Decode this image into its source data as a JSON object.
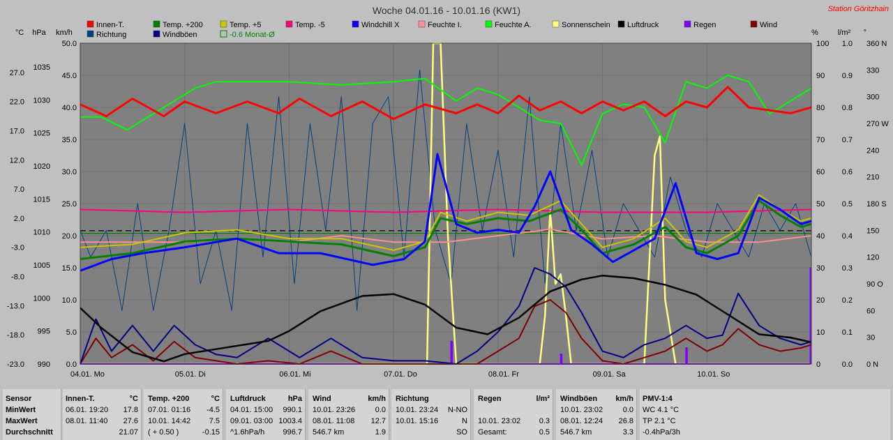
{
  "title": "Woche 04.01.16 - 10.01.16 (KW1)",
  "station": "Station Göritzhain",
  "axes": {
    "left_units": [
      "°C",
      "hPa",
      "km/h"
    ],
    "right_units": [
      "%",
      "l/m²",
      "°"
    ],
    "temp_ticks": [
      "27.0",
      "22.0",
      "17.0",
      "12.0",
      "7.0",
      "2.0",
      "-3.0",
      "-8.0",
      "-13.0",
      "-18.0",
      "-23.0"
    ],
    "hpa_ticks": [
      "1035",
      "1030",
      "1025",
      "1020",
      "1015",
      "1010",
      "1005",
      "1000",
      "995",
      "990"
    ],
    "kmh_ticks": [
      "50.0",
      "45.0",
      "40.0",
      "35.0",
      "30.0",
      "25.0",
      "20.0",
      "15.0",
      "10.0",
      "5.0",
      "0.0"
    ],
    "pct_ticks": [
      "100",
      "90",
      "80",
      "70",
      "60",
      "50",
      "40",
      "30",
      "20",
      "10",
      "0"
    ],
    "rain_ticks": [
      "1.0",
      "0.9",
      "0.8",
      "0.7",
      "0.6",
      "0.5",
      "0.4",
      "0.3",
      "0.2",
      "0.1",
      "0.0"
    ],
    "deg_ticks": [
      "360 N",
      "330",
      "300",
      "270 W",
      "240",
      "210",
      "180 S",
      "150",
      "120",
      "90 O",
      "60",
      "30",
      "0 N"
    ],
    "day_labels": [
      "04.01. Mo",
      "05.01. Di",
      "06.01. Mi",
      "07.01. Do",
      "08.01. Fr",
      "09.01. Sa",
      "10.01. So"
    ]
  },
  "legend": [
    {
      "label": "Innen-T.",
      "color": "#ff0000"
    },
    {
      "label": "Temp. +200",
      "color": "#008000"
    },
    {
      "label": "Temp. +5",
      "color": "#c8c800"
    },
    {
      "label": "Temp. -5",
      "color": "#ff0080"
    },
    {
      "label": "Windchill X",
      "color": "#0000ff"
    },
    {
      "label": "Feuchte I.",
      "color": "#ff9090"
    },
    {
      "label": "Feuchte A.",
      "color": "#00ff00"
    },
    {
      "label": "Sonnenschein",
      "color": "#ffff80"
    },
    {
      "label": "Luftdruck",
      "color": "#000000"
    },
    {
      "label": "Regen",
      "color": "#8000ff"
    },
    {
      "label": "Wind",
      "color": "#800000"
    },
    {
      "label": "Richtung",
      "color": "#004080"
    },
    {
      "label": "Windböen",
      "color": "#000080"
    },
    {
      "label": "-0.6 Monat-Ø",
      "color": "#008000"
    }
  ],
  "chart_data": {
    "type": "line",
    "title": "Woche 04.01.16 - 10.01.16 (KW1)",
    "x_unit": "days from 04.01.16 00:00",
    "xlim": [
      0,
      7
    ],
    "ylim_temp": [
      -23,
      32
    ],
    "ylim_pressure": [
      990,
      1038.6
    ],
    "ylim_kmh": [
      0,
      50
    ],
    "ylim_percent": [
      0,
      100
    ],
    "ylim_rain": [
      0,
      1
    ],
    "ylim_dir_deg": [
      0,
      360
    ],
    "reference_lines": [
      {
        "name": "Temp mean",
        "y_temp": -0.15,
        "color": "#000000",
        "style": "dashed"
      },
      {
        "name": "-0.6 Monat-Ø",
        "y_temp": -0.6,
        "color": "#008000",
        "style": "solid"
      }
    ],
    "series": [
      {
        "name": "Innen-T.",
        "axis": "temp",
        "color": "#ff0000",
        "x": [
          0,
          0.25,
          0.5,
          0.8,
          1.0,
          1.3,
          1.6,
          1.9,
          2.1,
          2.4,
          2.7,
          3.0,
          3.3,
          3.6,
          3.8,
          4.0,
          4.2,
          4.4,
          4.6,
          4.8,
          5.0,
          5.2,
          5.4,
          5.6,
          5.8,
          6.0,
          6.2,
          6.4,
          6.6,
          6.8,
          7.0
        ],
        "y": [
          21.5,
          19.5,
          22.5,
          19.5,
          22.0,
          20.0,
          22.0,
          20.0,
          22.5,
          19.5,
          22.0,
          19.0,
          21.5,
          20.0,
          21.5,
          20.0,
          23.0,
          20.5,
          22.0,
          20.0,
          22.0,
          20.5,
          22.0,
          19.5,
          22.0,
          21.0,
          24.5,
          21.0,
          20.5,
          20.0,
          21.0
        ]
      },
      {
        "name": "Temp. +200",
        "axis": "temp",
        "color": "#008000",
        "x": [
          0,
          0.5,
          1.0,
          1.5,
          2.0,
          2.5,
          3.0,
          3.3,
          3.45,
          3.7,
          4.0,
          4.3,
          4.6,
          4.8,
          5.0,
          5.3,
          5.6,
          5.8,
          6.0,
          6.3,
          6.5,
          6.7,
          6.9,
          7.0
        ],
        "y": [
          -5.0,
          -4.0,
          -2.0,
          -1.5,
          -2.0,
          -2.5,
          -4.5,
          -3.0,
          2.0,
          1.0,
          2.0,
          1.5,
          3.5,
          0.0,
          -4.0,
          -2.5,
          0.5,
          -3.0,
          -4.0,
          -1.0,
          5.0,
          2.5,
          0.5,
          1.0
        ]
      },
      {
        "name": "Temp. +5",
        "axis": "temp",
        "color": "#c8c800",
        "x": [
          0,
          0.5,
          1.0,
          1.5,
          2.0,
          2.5,
          3.0,
          3.3,
          3.45,
          3.7,
          4.0,
          4.3,
          4.6,
          4.8,
          5.0,
          5.3,
          5.6,
          5.8,
          6.0,
          6.3,
          6.5,
          6.7,
          6.9,
          7.0
        ],
        "y": [
          -3.0,
          -2.5,
          -0.5,
          0.0,
          -1.5,
          -1.5,
          -3.5,
          -2.0,
          3.0,
          1.5,
          3.0,
          2.5,
          5.0,
          1.0,
          -3.0,
          -1.5,
          2.0,
          -2.0,
          -3.0,
          0.0,
          6.0,
          3.5,
          1.5,
          2.0
        ]
      },
      {
        "name": "Temp. -5",
        "axis": "temp",
        "color": "#ff0080",
        "x": [
          0,
          1.0,
          2.0,
          3.0,
          4.0,
          5.0,
          6.0,
          7.0
        ],
        "y": [
          3.5,
          3.0,
          3.5,
          3.0,
          3.5,
          3.0,
          3.0,
          3.5
        ]
      },
      {
        "name": "Windchill X",
        "axis": "temp",
        "color": "#0000ff",
        "x": [
          0,
          0.3,
          0.6,
          1.0,
          1.5,
          1.9,
          2.3,
          2.8,
          3.1,
          3.3,
          3.42,
          3.6,
          3.8,
          4.0,
          4.2,
          4.35,
          4.5,
          4.7,
          4.9,
          5.1,
          5.3,
          5.5,
          5.7,
          5.9,
          6.1,
          6.3,
          6.5,
          6.7,
          6.9,
          7.0
        ],
        "y": [
          -7.0,
          -5.0,
          -4.0,
          -3.0,
          -1.5,
          -4.0,
          -4.0,
          -6.0,
          -5.0,
          -2.0,
          13.0,
          1.0,
          -0.5,
          0.0,
          -0.5,
          4.0,
          10.0,
          0.0,
          -2.5,
          -5.5,
          -3.5,
          -1.5,
          8.0,
          -4.0,
          -5.0,
          -4.0,
          5.5,
          3.5,
          1.0,
          1.5
        ]
      },
      {
        "name": "Feuchte I.",
        "axis": "percent",
        "color": "#ff9090",
        "x": [
          0,
          0.5,
          1.0,
          1.5,
          2.0,
          2.5,
          3.0,
          3.5,
          4.0,
          4.5,
          5.0,
          5.5,
          6.0,
          6.5,
          7.0
        ],
        "y": [
          38,
          38,
          38,
          39,
          38,
          40,
          38,
          38,
          40,
          42,
          39,
          40,
          38,
          38,
          40
        ]
      },
      {
        "name": "Feuchte A.",
        "axis": "percent",
        "color": "#00ff00",
        "x": [
          0,
          0.2,
          0.45,
          0.7,
          0.9,
          1.1,
          1.3,
          1.6,
          2.0,
          2.5,
          3.0,
          3.3,
          3.6,
          3.8,
          4.0,
          4.2,
          4.4,
          4.6,
          4.8,
          5.0,
          5.2,
          5.4,
          5.6,
          5.8,
          6.0,
          6.2,
          6.4,
          6.6,
          6.8,
          7.0
        ],
        "y": [
          77,
          77,
          73,
          78,
          82,
          86,
          88,
          88,
          88,
          87,
          88,
          89,
          82,
          86,
          84,
          80,
          76,
          75,
          62,
          78,
          81,
          80,
          69,
          88,
          86,
          90,
          88,
          78,
          82,
          86
        ]
      },
      {
        "name": "Sonnenschein",
        "axis": "percent",
        "color": "#ffff80",
        "x": [
          0,
          3.32,
          3.38,
          3.45,
          3.52,
          3.6,
          4.0,
          4.4,
          4.45,
          4.5,
          4.55,
          4.6,
          4.65,
          4.7,
          5.0,
          5.4,
          5.5,
          5.55,
          5.6,
          5.7,
          7.0
        ],
        "y": [
          0,
          0,
          100,
          100,
          40,
          0,
          0,
          0,
          15,
          48,
          25,
          28,
          15,
          0,
          0,
          0,
          65,
          71,
          20,
          0,
          0
        ]
      },
      {
        "name": "Luftdruck",
        "axis": "pressure",
        "color": "#000000",
        "x": [
          0,
          0.2,
          0.5,
          0.8,
          1.0,
          1.4,
          1.8,
          2.0,
          2.3,
          2.7,
          3.0,
          3.3,
          3.6,
          3.9,
          4.2,
          4.5,
          4.8,
          5.0,
          5.3,
          5.6,
          5.9,
          6.2,
          6.5,
          6.8,
          7.0
        ],
        "y": [
          998.5,
          995.5,
          991.8,
          990.4,
          991.5,
          992.5,
          993.5,
          995.0,
          998.0,
          1000.3,
          1000.6,
          999.0,
          995.5,
          994.5,
          997.0,
          1001.0,
          1002.8,
          1003.4,
          1003.0,
          1002.0,
          1000.5,
          997.5,
          994.5,
          994.0,
          993.3
        ]
      },
      {
        "name": "Regen",
        "axis": "rain",
        "color": "#8000ff",
        "x": [
          0,
          3.55,
          3.55,
          3.56,
          3.56,
          4.6,
          4.6,
          4.61,
          4.61,
          5.8,
          5.8,
          5.81,
          5.81,
          6.99,
          6.99,
          7.0
        ],
        "y": [
          0,
          0,
          0.07,
          0.07,
          0,
          0,
          0.03,
          0.03,
          0,
          0,
          0.05,
          0.05,
          0,
          0,
          0.3,
          0.3
        ]
      },
      {
        "name": "Wind",
        "axis": "kmh",
        "color": "#800000",
        "x": [
          0,
          0.15,
          0.3,
          0.5,
          0.7,
          0.9,
          1.1,
          1.3,
          1.5,
          1.8,
          2.1,
          2.4,
          2.7,
          3.0,
          3.3,
          3.6,
          3.8,
          4.0,
          4.2,
          4.35,
          4.5,
          4.65,
          4.8,
          5.0,
          5.2,
          5.4,
          5.6,
          5.8,
          6.0,
          6.15,
          6.3,
          6.5,
          6.7,
          6.9,
          7.0
        ],
        "y": [
          0,
          4.0,
          1.0,
          3.0,
          0.5,
          3.5,
          1.0,
          0.5,
          0.0,
          0.5,
          0.0,
          2.0,
          0.0,
          0.0,
          0.0,
          0.0,
          0.0,
          2.0,
          4.0,
          9.0,
          10.0,
          8.0,
          4.0,
          0.5,
          0.0,
          1.0,
          2.0,
          4.0,
          2.0,
          3.0,
          5.5,
          3.0,
          2.0,
          2.5,
          3.0
        ]
      },
      {
        "name": "Windböen",
        "axis": "kmh",
        "color": "#000080",
        "x": [
          0,
          0.15,
          0.3,
          0.5,
          0.7,
          0.9,
          1.1,
          1.3,
          1.5,
          1.8,
          2.1,
          2.4,
          2.7,
          3.0,
          3.3,
          3.6,
          3.8,
          4.0,
          4.2,
          4.35,
          4.5,
          4.65,
          4.8,
          5.0,
          5.2,
          5.4,
          5.6,
          5.8,
          6.0,
          6.15,
          6.3,
          6.5,
          6.7,
          6.9,
          7.0
        ],
        "y": [
          0,
          7.0,
          2.0,
          6.0,
          2.0,
          6.0,
          3.0,
          1.5,
          1.0,
          4.0,
          1.0,
          4.0,
          1.0,
          0.5,
          0.5,
          0.0,
          2.0,
          5.0,
          9.0,
          15.0,
          14.0,
          12.0,
          8.0,
          2.0,
          1.0,
          3.0,
          4.0,
          6.0,
          4.0,
          4.5,
          11.0,
          6.0,
          4.0,
          3.0,
          3.5
        ]
      },
      {
        "name": "Richtung",
        "axis": "dir_deg",
        "color": "#004080",
        "x": [
          0,
          0.1,
          0.25,
          0.4,
          0.55,
          0.7,
          0.85,
          1.0,
          1.15,
          1.3,
          1.45,
          1.6,
          1.75,
          1.9,
          2.05,
          2.2,
          2.35,
          2.5,
          2.65,
          2.8,
          2.95,
          3.1,
          3.25,
          3.4,
          3.55,
          3.7,
          3.85,
          4.0,
          4.15,
          4.3,
          4.45,
          4.6,
          4.75,
          4.9,
          5.05,
          5.2,
          5.35,
          5.5,
          5.65,
          5.8,
          5.95,
          6.1,
          6.25,
          6.4,
          6.55,
          6.7,
          6.85,
          7.0
        ],
        "y": [
          150,
          120,
          150,
          60,
          180,
          60,
          150,
          270,
          90,
          150,
          60,
          270,
          120,
          300,
          90,
          270,
          150,
          300,
          60,
          270,
          300,
          120,
          330,
          150,
          90,
          270,
          150,
          240,
          120,
          300,
          90,
          270,
          150,
          240,
          120,
          180,
          150,
          120,
          210,
          150,
          120,
          180,
          150,
          120,
          180,
          150,
          180,
          120
        ]
      }
    ]
  },
  "table": {
    "sensor": {
      "head": "Sensor",
      "rows": [
        "MinWert",
        "MaxWert",
        "Durchschnitt"
      ]
    },
    "innen": {
      "head": "Innen-T.",
      "unit": "°C",
      "rows": [
        [
          "06.01.  19:20",
          "17.8"
        ],
        [
          "08.01.  11:40",
          "27.6"
        ],
        [
          "",
          "21.07"
        ]
      ]
    },
    "temp200": {
      "head": "Temp. +200",
      "unit": "°C",
      "rows": [
        [
          "07.01.  01:16",
          "-4.5"
        ],
        [
          "10.01.  14:42",
          "7.5"
        ],
        [
          "( + 0.50 )",
          "-0.15"
        ]
      ]
    },
    "luftdruck": {
      "head": "Luftdruck",
      "unit": "hPa",
      "rows": [
        [
          "04.01.  15:00",
          "990.1"
        ],
        [
          "09.01.  03:00",
          "1003.4"
        ],
        [
          "^1.6hPa/h",
          "996.7"
        ]
      ]
    },
    "wind": {
      "head": "Wind",
      "unit": "km/h",
      "rows": [
        [
          "10.01.  23:26",
          "0.0"
        ],
        [
          "08.01.  11:08",
          "12.7"
        ],
        [
          "546.7 km",
          "1.9"
        ]
      ]
    },
    "richtung": {
      "head": "Richtung",
      "unit": "",
      "rows": [
        [
          "10.01.  23:24",
          "N-NO"
        ],
        [
          "10.01.  15:16",
          "N"
        ],
        [
          "",
          "SO"
        ]
      ]
    },
    "regen": {
      "head": "Regen",
      "unit": "l/m²",
      "rows": [
        [
          "",
          ""
        ],
        [
          "10.01.  23:02",
          "0.3"
        ],
        [
          "Gesamt:",
          "0.5"
        ]
      ]
    },
    "boeen": {
      "head": "Windböen",
      "unit": "km/h",
      "rows": [
        [
          "10.01.  23:02",
          "0.0"
        ],
        [
          "08.01.  12:24",
          "26.8"
        ],
        [
          "546.7 km",
          "3.3"
        ]
      ]
    },
    "pmv": {
      "head": "PMV-1:4",
      "rows": [
        "WC 4.1 °C",
        "TP 2.1 °C",
        "-0.4hPa/3h"
      ]
    }
  }
}
